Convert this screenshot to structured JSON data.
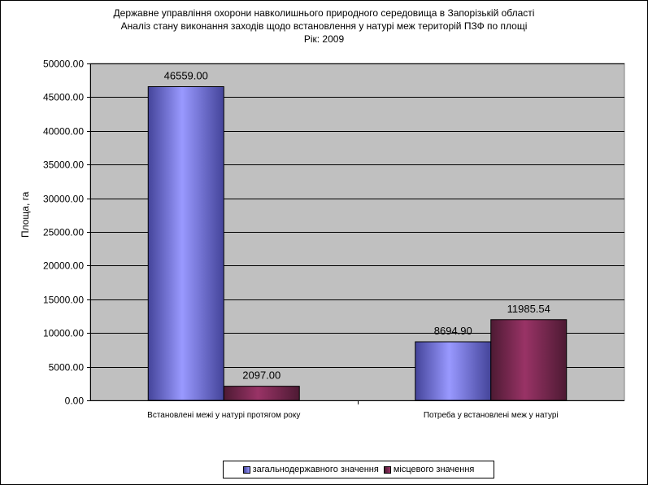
{
  "chart_data": {
    "type": "bar",
    "title_lines": [
      "Державне управління охорони навколишнього природного середовища в Запорізькій області",
      "Аналіз стану виконання заходів щодо встановлення у натурі меж територій ПЗФ по площі",
      "Рік: 2009"
    ],
    "ylabel": "Площа, га",
    "xlabel": "",
    "ylim": [
      0,
      50000
    ],
    "yticks": [
      "0.00",
      "5000.00",
      "10000.00",
      "15000.00",
      "20000.00",
      "25000.00",
      "30000.00",
      "35000.00",
      "40000.00",
      "45000.00",
      "50000.00"
    ],
    "categories": [
      "Встановлені межі у натурі протягом року",
      "Потреба у встановлені меж у натурі"
    ],
    "series": [
      {
        "name": "загальнодержавного значення",
        "values": [
          46559.0,
          8694.9
        ],
        "labels": [
          "46559.00",
          "8694.90"
        ],
        "color": "#9999ff",
        "dark": "#44449a"
      },
      {
        "name": "місцевого значення",
        "values": [
          2097.0,
          11985.54
        ],
        "labels": [
          "2097.00",
          "11985.54"
        ],
        "color": "#993366",
        "dark": "#4d1a33"
      }
    ],
    "grid": true,
    "plot_background": "#c0c0c0",
    "legend_position": "bottom"
  }
}
